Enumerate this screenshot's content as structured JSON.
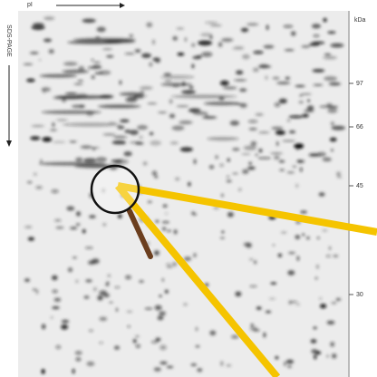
{
  "header": {
    "x_axis": "pI",
    "y_axis": "SDS-PAGE",
    "mw_unit": "kDa"
  },
  "mw_markers": [
    "97",
    "66",
    "45",
    "30"
  ]
}
